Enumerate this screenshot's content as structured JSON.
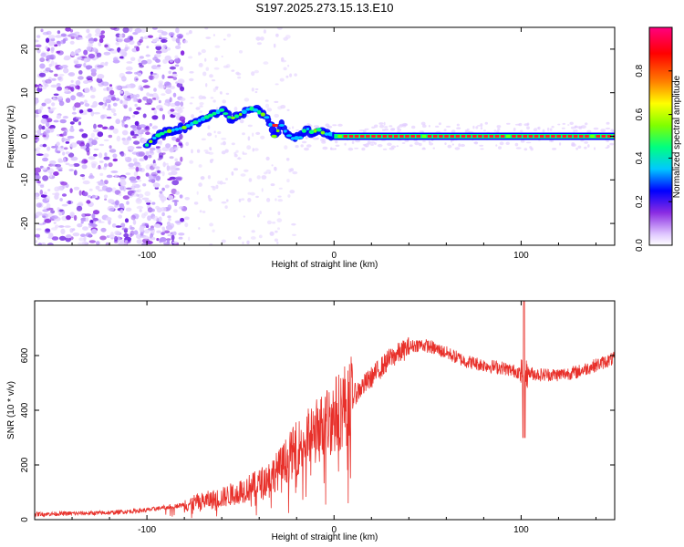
{
  "title": "S197.2025.273.15.13.E10",
  "chart_data": [
    {
      "type": "heatmap",
      "name": "spectrogram",
      "xlabel": "Height of straight line (km)",
      "ylabel": "Frequency (Hz)",
      "xlim": [
        -160,
        150
      ],
      "ylim": [
        -25,
        25
      ],
      "xticks": [
        -100,
        0,
        100
      ],
      "yticks": [
        -20,
        -10,
        0,
        10,
        20
      ],
      "ridge": {
        "x": [
          -100,
          -95,
          -90,
          -85,
          -80,
          -75,
          -70,
          -65,
          -60,
          -55,
          -50,
          -45,
          -42,
          -38,
          -35,
          -32,
          -28,
          -25,
          -22,
          -18,
          -15,
          -12,
          -8,
          -5,
          -2,
          0,
          50,
          100,
          150
        ],
        "y": [
          -2,
          0,
          1,
          1.5,
          2,
          3,
          4,
          5,
          6,
          4,
          5,
          6.5,
          6,
          5,
          4,
          0,
          2.5,
          0.5,
          -0.5,
          -0.3,
          2,
          1,
          1.5,
          0.5,
          0.5,
          0,
          0,
          0,
          0
        ]
      },
      "colorbar": {
        "label": "Normalized spectral amplitude",
        "ticks": [
          0.0,
          0.2,
          0.4,
          0.6,
          0.8
        ],
        "range": [
          0,
          1
        ],
        "colors": [
          "#ffffff",
          "#e0c8ff",
          "#8a2be2",
          "#0000ff",
          "#00c8ff",
          "#00ff80",
          "#80ff00",
          "#ffff00",
          "#ff8000",
          "#ff0000",
          "#ff0080"
        ]
      }
    },
    {
      "type": "line",
      "name": "snr",
      "xlabel": "Height of straight line (km)",
      "ylabel": "SNR (10 * v/v)",
      "xlim": [
        -160,
        150
      ],
      "ylim": [
        0,
        800
      ],
      "xticks": [
        -100,
        0,
        100
      ],
      "yticks": [
        0,
        200,
        400,
        600
      ],
      "color": "#e8302a",
      "trend": {
        "x": [
          -160,
          -120,
          -100,
          -80,
          -60,
          -40,
          -30,
          -20,
          -10,
          0,
          10,
          20,
          30,
          40,
          45,
          50,
          60,
          70,
          80,
          90,
          95,
          100,
          105,
          110,
          120,
          130,
          140,
          150
        ],
        "y": [
          20,
          25,
          35,
          55,
          80,
          130,
          180,
          260,
          320,
          380,
          450,
          520,
          590,
          630,
          640,
          635,
          610,
          580,
          565,
          555,
          545,
          540,
          535,
          530,
          530,
          540,
          565,
          590
        ]
      },
      "spikes": [
        {
          "x": 101.5,
          "peak": 800,
          "dip": 300
        }
      ]
    }
  ]
}
